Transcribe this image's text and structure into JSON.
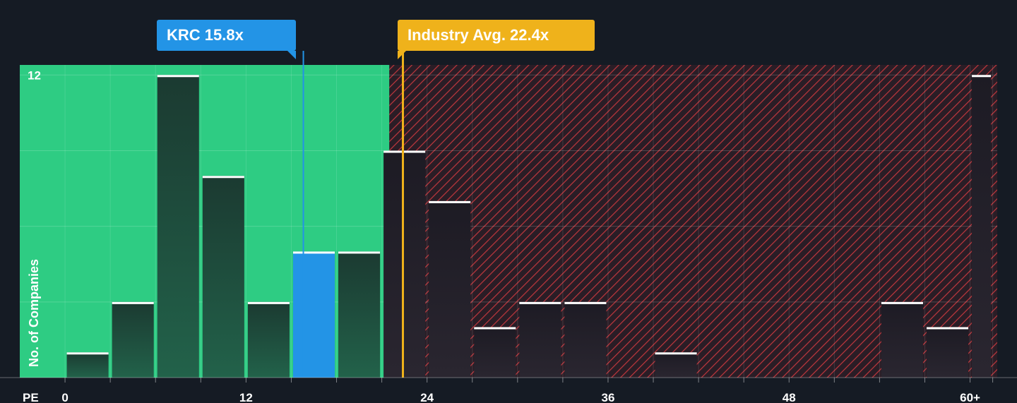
{
  "chart_data": {
    "type": "bar",
    "title": "",
    "xlabel": "PE",
    "ylabel": "No. of Companies",
    "xlim": [
      -3,
      61.8
    ],
    "ylim": [
      0,
      12.4
    ],
    "x_ticks": [
      0,
      12,
      24,
      36,
      48,
      "60+"
    ],
    "y_ticks": [
      12
    ],
    "bin_edges": [
      0,
      3,
      6,
      9,
      12,
      15,
      18,
      21,
      24,
      27,
      30,
      33,
      36,
      39,
      42,
      45,
      48,
      51,
      54,
      57,
      60,
      61.5
    ],
    "bins": [
      {
        "x0": 0,
        "x1": 3,
        "count": 1
      },
      {
        "x0": 3,
        "x1": 6,
        "count": 3
      },
      {
        "x0": 6,
        "x1": 9,
        "count": 12
      },
      {
        "x0": 9,
        "x1": 12,
        "count": 8
      },
      {
        "x0": 12,
        "x1": 15,
        "count": 3
      },
      {
        "x0": 15,
        "x1": 18,
        "count": 5,
        "highlight": true
      },
      {
        "x0": 18,
        "x1": 21,
        "count": 5
      },
      {
        "x0": 21,
        "x1": 24,
        "count": 9
      },
      {
        "x0": 24,
        "x1": 27,
        "count": 7
      },
      {
        "x0": 27,
        "x1": 30,
        "count": 2
      },
      {
        "x0": 30,
        "x1": 33,
        "count": 3
      },
      {
        "x0": 33,
        "x1": 36,
        "count": 3
      },
      {
        "x0": 36,
        "x1": 39,
        "count": 0
      },
      {
        "x0": 39,
        "x1": 42,
        "count": 1
      },
      {
        "x0": 42,
        "x1": 45,
        "count": 0
      },
      {
        "x0": 45,
        "x1": 48,
        "count": 0
      },
      {
        "x0": 48,
        "x1": 51,
        "count": 0
      },
      {
        "x0": 51,
        "x1": 54,
        "count": 0
      },
      {
        "x0": 54,
        "x1": 57,
        "count": 3
      },
      {
        "x0": 57,
        "x1": 60,
        "count": 2
      },
      {
        "x0": 60,
        "x1": 61.5,
        "count": 12
      }
    ],
    "company": {
      "label": "KRC 15.8x",
      "value": 15.8
    },
    "industry_avg": {
      "label": "Industry Avg. 22.4x",
      "value": 22.4
    },
    "favorable_until": 21.5
  },
  "colors": {
    "background": "#151b24",
    "favorable_zone": "#2ecc83",
    "unfavorable_zone": "#2a1d26",
    "hatch": "#c0373d",
    "bar_fill_favorable": "#1f4a3a",
    "bar_fill_unfavorable": "#2b2530",
    "highlight": "#2394e6",
    "industry": "#efb21b",
    "bar_cap": "#ffffff"
  }
}
